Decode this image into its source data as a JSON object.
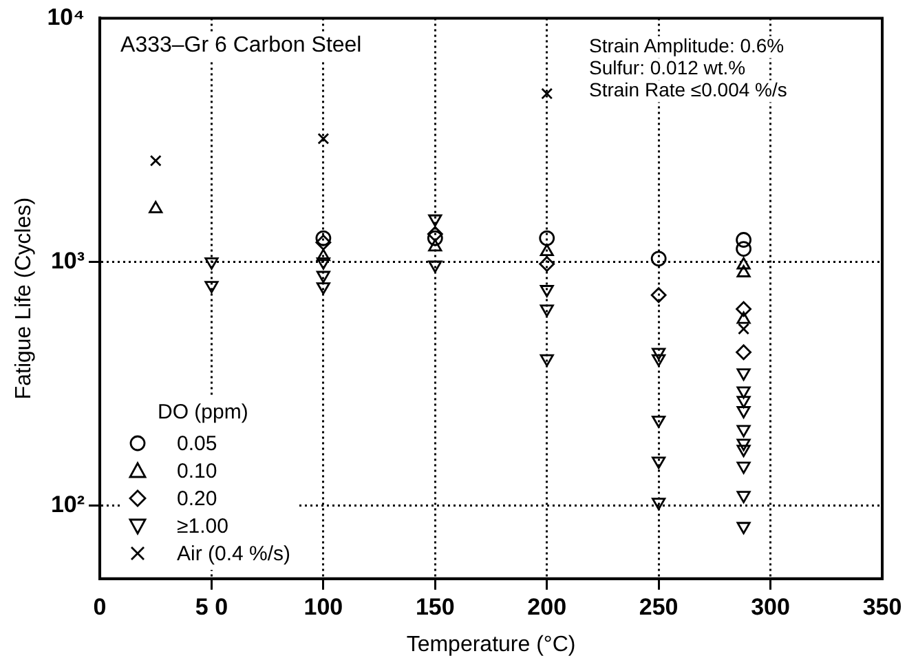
{
  "chart_data": {
    "type": "scatter",
    "xlabel": "Temperature (°C)",
    "ylabel": "Fatigue Life (Cycles)",
    "legend_title": "DO (ppm)",
    "legend": "bottom left",
    "log": "y",
    "grid": true,
    "line_style": "dotted",
    "xlim": [
      0,
      350
    ],
    "xticks": [
      0,
      {
        "value": 50,
        "label": "5 0"
      },
      100,
      150,
      200,
      250,
      300,
      350
    ],
    "ylim": [
      50,
      10000
    ],
    "yticks": [
      {
        "value": 100,
        "label": "10²"
      },
      {
        "value": 1000,
        "label": "10³"
      },
      {
        "value": 10000,
        "label": "10⁴"
      }
    ],
    "annotations": [
      "A333–Gr 6 Carbon Steel",
      "Strain Amplitude: 0.6%",
      "Sulfur: 0.012 wt.%",
      "Strain Rate ≤0.004 %/s"
    ],
    "series": [
      {
        "name": "0.05",
        "color": "#000000",
        "marker": "circle",
        "x": [
          100,
          150,
          200,
          250,
          288,
          288
        ],
        "values": [
          1250,
          1250,
          1250,
          1030,
          1230,
          1130
        ]
      },
      {
        "name": "0.10",
        "color": "#000000",
        "marker": "triangle",
        "x": [
          25,
          100,
          150,
          200,
          288,
          288,
          288
        ],
        "values": [
          1650,
          1050,
          1150,
          1100,
          970,
          900,
          580
        ]
      },
      {
        "name": "0.20",
        "color": "#000000",
        "marker": "diamond",
        "x": [
          100,
          150,
          200,
          250,
          288,
          288
        ],
        "values": [
          1200,
          1300,
          980,
          730,
          640,
          425
        ]
      },
      {
        "name": "≥1.00",
        "color": "#000000",
        "marker": "triangle_down",
        "x": [
          50,
          50,
          100,
          100,
          100,
          150,
          150,
          200,
          200,
          200,
          250,
          250,
          250,
          250,
          250,
          288,
          288,
          288,
          288,
          288,
          288,
          288,
          288,
          288,
          288
        ],
        "values": [
          1000,
          800,
          1000,
          880,
          790,
          1500,
          970,
          770,
          640,
          400,
          425,
          400,
          224,
          152,
          103,
          350,
          295,
          270,
          245,
          205,
          180,
          170,
          145,
          110,
          82
        ]
      },
      {
        "name": "Air (0.4 %/s)",
        "color": "#000000",
        "marker": "cross",
        "x": [
          25,
          100,
          200,
          288
        ],
        "values": [
          2600,
          3200,
          4900,
          530
        ]
      }
    ]
  }
}
